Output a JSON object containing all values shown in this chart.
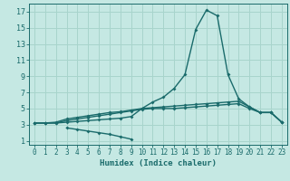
{
  "xlabel": "Humidex (Indice chaleur)",
  "xlim": [
    -0.5,
    23.5
  ],
  "ylim": [
    0.5,
    18
  ],
  "xticks": [
    0,
    1,
    2,
    3,
    4,
    5,
    6,
    7,
    8,
    9,
    10,
    11,
    12,
    13,
    14,
    15,
    16,
    17,
    18,
    19,
    20,
    21,
    22,
    23
  ],
  "yticks": [
    1,
    3,
    5,
    7,
    9,
    11,
    13,
    15,
    17
  ],
  "bg_color": "#c5e8e3",
  "grid_color": "#a8d4cc",
  "line_color": "#1a6b6b",
  "line_width": 1.0,
  "marker_size": 2.0,
  "curve1_x": [
    0,
    1,
    2,
    3,
    4,
    5,
    6,
    7,
    8,
    9,
    10,
    11,
    12,
    13,
    14,
    15,
    16,
    17,
    18,
    19,
    20,
    21,
    22,
    23
  ],
  "curve1_y": [
    3.2,
    3.2,
    3.2,
    3.3,
    3.4,
    3.5,
    3.6,
    3.7,
    3.8,
    4.0,
    5.0,
    5.8,
    6.4,
    7.5,
    9.2,
    14.8,
    17.2,
    16.5,
    9.2,
    6.2,
    5.2,
    4.5,
    4.5,
    3.3
  ],
  "curve2_x": [
    0,
    1,
    2,
    3,
    4,
    5,
    6,
    7,
    8,
    9,
    10,
    11,
    12,
    13,
    14,
    15,
    16,
    17,
    18,
    19,
    20,
    21,
    22,
    23
  ],
  "curve2_y": [
    3.2,
    3.2,
    3.3,
    3.7,
    3.9,
    4.1,
    4.3,
    4.5,
    4.6,
    4.8,
    5.0,
    5.1,
    5.2,
    5.3,
    5.4,
    5.5,
    5.6,
    5.7,
    5.8,
    5.9,
    5.2,
    4.5,
    4.5,
    3.3
  ],
  "curve3_x": [
    0,
    1,
    2,
    3,
    4,
    5,
    6,
    7,
    8,
    9,
    10,
    11,
    12,
    13,
    14,
    15,
    16,
    17,
    18,
    19,
    20,
    21,
    22,
    23
  ],
  "curve3_y": [
    3.2,
    3.2,
    3.2,
    3.5,
    3.7,
    3.9,
    4.1,
    4.3,
    4.5,
    4.7,
    4.9,
    5.0,
    5.0,
    5.0,
    5.1,
    5.2,
    5.3,
    5.4,
    5.5,
    5.6,
    5.0,
    4.5,
    4.5,
    3.3
  ],
  "curve4_x": [
    3,
    4,
    5,
    6,
    7,
    8,
    9
  ],
  "curve4_y": [
    2.6,
    2.4,
    2.2,
    2.0,
    1.8,
    1.5,
    1.2
  ]
}
